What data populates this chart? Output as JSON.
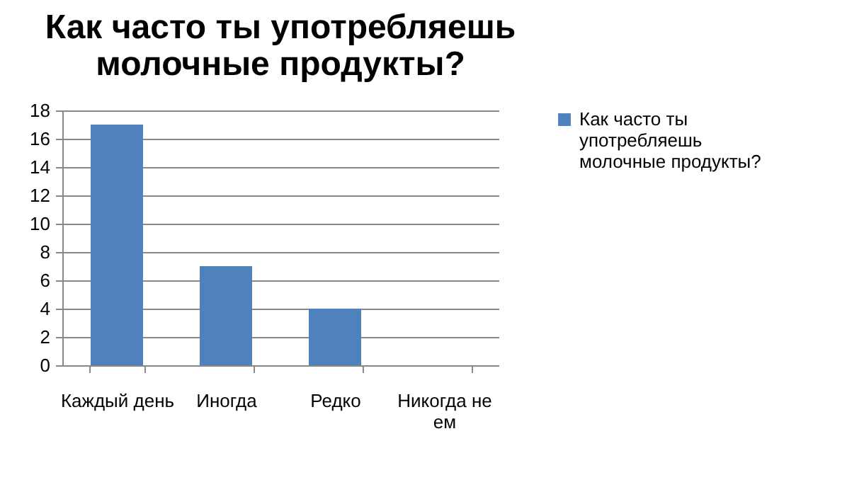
{
  "chart_data": {
    "type": "bar",
    "title": "Как часто ты употребляешь молочные продукты?",
    "categories": [
      "Каждый день",
      "Иногда",
      "Редко",
      "Никогда не ем"
    ],
    "series": [
      {
        "name": "Как часто ты употребляешь молочные продукты?",
        "color": "#4f81bd",
        "values": [
          17,
          7,
          4,
          0
        ]
      }
    ],
    "ylim": [
      0,
      18
    ],
    "yticks": [
      0,
      2,
      4,
      6,
      8,
      10,
      12,
      14,
      16,
      18
    ],
    "grid": "y",
    "legend": "right"
  }
}
